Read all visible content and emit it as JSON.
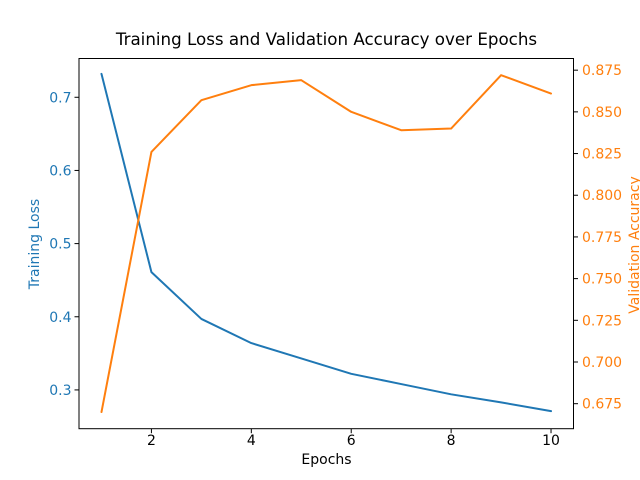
{
  "figure": {
    "background": "#ffffff",
    "text_color": "#000000"
  },
  "chart_data": {
    "type": "line",
    "title": "Training Loss and Validation Accuracy over Epochs",
    "xlabel": "Epochs",
    "grid": false,
    "legend": "none",
    "x": [
      1,
      2,
      3,
      4,
      5,
      6,
      7,
      8,
      9,
      10
    ],
    "series": [
      {
        "name": "Training Loss",
        "axis": "left",
        "color": "#1f77b4",
        "values": [
          0.732,
          0.461,
          0.397,
          0.364,
          0.343,
          0.322,
          0.308,
          0.294,
          0.283,
          0.271
        ]
      },
      {
        "name": "Validation Accuracy",
        "axis": "right",
        "color": "#ff7f0e",
        "values": [
          0.67,
          0.826,
          0.857,
          0.866,
          0.869,
          0.85,
          0.839,
          0.84,
          0.872,
          0.861
        ]
      }
    ],
    "x_axis": {
      "label": "Epochs",
      "lim": [
        0.55,
        10.45
      ],
      "ticks": [
        2,
        4,
        6,
        8,
        10
      ],
      "tick_labels": [
        "2",
        "4",
        "6",
        "8",
        "10"
      ],
      "color": "#000000"
    },
    "left_axis": {
      "label": "Training Loss",
      "lim": [
        0.247,
        0.753
      ],
      "ticks": [
        0.3,
        0.4,
        0.5,
        0.6,
        0.7
      ],
      "tick_labels": [
        "0.3",
        "0.4",
        "0.5",
        "0.6",
        "0.7"
      ],
      "color": "#1f77b4"
    },
    "right_axis": {
      "label": "Validation Accuracy",
      "lim": [
        0.66,
        0.882
      ],
      "ticks": [
        0.675,
        0.7,
        0.725,
        0.75,
        0.775,
        0.8,
        0.825,
        0.85,
        0.875
      ],
      "tick_labels": [
        "0.675",
        "0.700",
        "0.725",
        "0.750",
        "0.775",
        "0.800",
        "0.825",
        "0.850",
        "0.875"
      ],
      "color": "#ff7f0e"
    }
  }
}
